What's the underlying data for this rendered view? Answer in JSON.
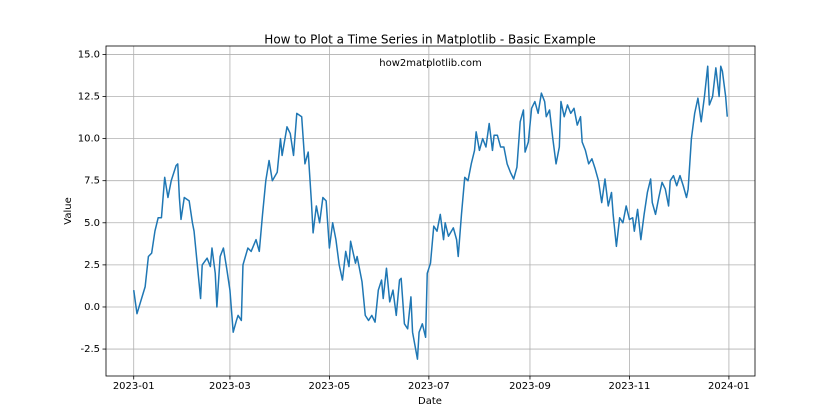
{
  "chart_data": {
    "type": "line",
    "title": "How to Plot a Time Series in Matplotlib - Basic Example",
    "x_label": "Date",
    "y_label": "Value",
    "annotation": "how2matplotlib.com",
    "color": "#1f77b4",
    "grid": true,
    "xlim": [
      "2022-12-15",
      "2024-01-17"
    ],
    "xticks": [
      {
        "value": "2023-01-01",
        "label": "2023-01"
      },
      {
        "value": "2023-03-01",
        "label": "2023-03"
      },
      {
        "value": "2023-05-01",
        "label": "2023-05"
      },
      {
        "value": "2023-07-01",
        "label": "2023-07"
      },
      {
        "value": "2023-09-01",
        "label": "2023-09"
      },
      {
        "value": "2023-11-01",
        "label": "2023-11"
      },
      {
        "value": "2024-01-01",
        "label": "2024-01"
      }
    ],
    "ylim": [
      -4.1,
      15.5
    ],
    "yticks": [
      -2.5,
      {
        "value": 0,
        "label": "0.0"
      },
      2.5,
      {
        "value": 5,
        "label": "5.0"
      },
      7.5,
      {
        "value": 10,
        "label": "10.0"
      },
      12.5,
      {
        "value": 15,
        "label": "15.0"
      }
    ],
    "x": [
      "2023-01-01",
      "2023-01-03",
      "2023-01-08",
      "2023-01-10",
      "2023-01-12",
      "2023-01-14",
      "2023-01-16",
      "2023-01-18",
      "2023-01-20",
      "2023-01-22",
      "2023-01-24",
      "2023-01-27",
      "2023-01-28",
      "2023-01-29",
      "2023-01-30",
      "2023-02-01",
      "2023-02-04",
      "2023-02-06",
      "2023-02-07",
      "2023-02-09",
      "2023-02-11",
      "2023-02-12",
      "2023-02-15",
      "2023-02-17",
      "2023-02-18",
      "2023-02-20",
      "2023-02-21",
      "2023-02-23",
      "2023-02-25",
      "2023-02-27",
      "2023-03-01",
      "2023-03-03",
      "2023-03-05",
      "2023-03-06",
      "2023-03-08",
      "2023-03-09",
      "2023-03-12",
      "2023-03-14",
      "2023-03-17",
      "2023-03-19",
      "2023-03-21",
      "2023-03-23",
      "2023-03-25",
      "2023-03-27",
      "2023-03-30",
      "2023-04-01",
      "2023-04-02",
      "2023-04-05",
      "2023-04-07",
      "2023-04-09",
      "2023-04-11",
      "2023-04-14",
      "2023-04-16",
      "2023-04-18",
      "2023-04-20",
      "2023-04-21",
      "2023-04-23",
      "2023-04-25",
      "2023-04-27",
      "2023-04-29",
      "2023-05-01",
      "2023-05-03",
      "2023-05-05",
      "2023-05-07",
      "2023-05-09",
      "2023-05-11",
      "2023-05-13",
      "2023-05-14",
      "2023-05-17",
      "2023-05-18",
      "2023-05-21",
      "2023-05-23",
      "2023-05-25",
      "2023-05-27",
      "2023-05-29",
      "2023-05-31",
      "2023-06-02",
      "2023-06-03",
      "2023-06-05",
      "2023-06-07",
      "2023-06-09",
      "2023-06-11",
      "2023-06-13",
      "2023-06-14",
      "2023-06-16",
      "2023-06-18",
      "2023-06-20",
      "2023-06-21",
      "2023-06-24",
      "2023-06-25",
      "2023-06-27",
      "2023-06-29",
      "2023-06-30",
      "2023-07-02",
      "2023-07-04",
      "2023-07-06",
      "2023-07-08",
      "2023-07-10",
      "2023-07-11",
      "2023-07-13",
      "2023-07-16",
      "2023-07-18",
      "2023-07-19",
      "2023-07-21",
      "2023-07-23",
      "2023-07-25",
      "2023-07-27",
      "2023-07-29",
      "2023-07-30",
      "2023-08-01",
      "2023-08-03",
      "2023-08-05",
      "2023-08-07",
      "2023-08-09",
      "2023-08-10",
      "2023-08-12",
      "2023-08-14",
      "2023-08-16",
      "2023-08-18",
      "2023-08-20",
      "2023-08-22",
      "2023-08-24",
      "2023-08-26",
      "2023-08-28",
      "2023-08-29",
      "2023-08-31",
      "2023-09-02",
      "2023-09-04",
      "2023-09-06",
      "2023-09-08",
      "2023-09-10",
      "2023-09-11",
      "2023-09-13",
      "2023-09-15",
      "2023-09-17",
      "2023-09-19",
      "2023-09-20",
      "2023-09-22",
      "2023-09-24",
      "2023-09-26",
      "2023-09-28",
      "2023-09-30",
      "2023-10-02",
      "2023-10-03",
      "2023-10-05",
      "2023-10-07",
      "2023-10-09",
      "2023-10-11",
      "2023-10-13",
      "2023-10-15",
      "2023-10-17",
      "2023-10-19",
      "2023-10-21",
      "2023-10-22",
      "2023-10-24",
      "2023-10-26",
      "2023-10-28",
      "2023-10-30",
      "2023-11-01",
      "2023-11-03",
      "2023-11-04",
      "2023-11-06",
      "2023-11-08",
      "2023-11-10",
      "2023-11-12",
      "2023-11-14",
      "2023-11-15",
      "2023-11-17",
      "2023-11-19",
      "2023-11-21",
      "2023-11-23",
      "2023-11-25",
      "2023-11-26",
      "2023-11-28",
      "2023-11-30",
      "2023-12-02",
      "2023-12-04",
      "2023-12-06",
      "2023-12-07",
      "2023-12-09",
      "2023-12-11",
      "2023-12-13",
      "2023-12-15",
      "2023-12-17",
      "2023-12-19",
      "2023-12-20",
      "2023-12-22",
      "2023-12-24",
      "2023-12-26",
      "2023-12-27",
      "2023-12-28",
      "2023-12-30",
      "2023-12-31"
    ],
    "values": [
      1.0,
      -0.4,
      1.2,
      3.0,
      3.2,
      4.5,
      5.3,
      5.3,
      7.7,
      6.5,
      7.5,
      8.4,
      8.5,
      6.5,
      5.2,
      6.5,
      6.3,
      5.0,
      4.5,
      2.5,
      0.5,
      2.5,
      2.9,
      2.4,
      3.5,
      2.0,
      0.0,
      3.0,
      3.5,
      2.3,
      1.0,
      -1.5,
      -0.8,
      -0.5,
      -0.8,
      2.5,
      3.5,
      3.3,
      4.0,
      3.3,
      5.5,
      7.5,
      8.7,
      7.5,
      8.0,
      10.0,
      9.0,
      10.7,
      10.3,
      9.0,
      11.5,
      11.3,
      8.5,
      9.2,
      6.2,
      4.4,
      6.0,
      5.0,
      6.5,
      6.3,
      3.5,
      5.0,
      4.0,
      2.5,
      1.6,
      3.3,
      2.4,
      3.9,
      2.6,
      3.0,
      1.5,
      -0.5,
      -0.8,
      -0.5,
      -0.9,
      1.0,
      1.6,
      0.5,
      2.3,
      0.3,
      1.0,
      -0.5,
      1.6,
      1.7,
      -1.0,
      -1.3,
      0.6,
      -1.5,
      -3.1,
      -1.5,
      -1.0,
      -1.8,
      2.0,
      2.6,
      4.8,
      4.5,
      5.5,
      4.0,
      5.0,
      4.2,
      4.7,
      4.0,
      3.0,
      5.5,
      7.7,
      7.5,
      8.5,
      9.3,
      10.4,
      9.3,
      10.0,
      9.5,
      10.9,
      9.3,
      10.2,
      10.2,
      9.5,
      9.5,
      8.5,
      8.0,
      7.6,
      8.3,
      11.0,
      11.7,
      9.2,
      9.8,
      11.8,
      12.2,
      11.5,
      12.7,
      12.2,
      11.3,
      11.7,
      10.0,
      8.5,
      9.5,
      12.2,
      11.3,
      12.0,
      11.5,
      11.8,
      10.8,
      11.3,
      9.8,
      9.3,
      8.5,
      8.8,
      8.2,
      7.5,
      6.2,
      7.6,
      6.0,
      6.8,
      5.5,
      3.6,
      5.3,
      5.0,
      6.0,
      5.2,
      5.3,
      4.5,
      5.8,
      4.0,
      5.5,
      6.8,
      7.6,
      6.2,
      5.5,
      6.5,
      7.4,
      7.0,
      6.0,
      7.5,
      7.8,
      7.2,
      7.8,
      7.2,
      6.5,
      7.0,
      10.0,
      11.5,
      12.4,
      11.0,
      12.5,
      14.3,
      12.0,
      12.5,
      14.2,
      12.5,
      14.3,
      14.0,
      12.5,
      11.3
    ]
  }
}
